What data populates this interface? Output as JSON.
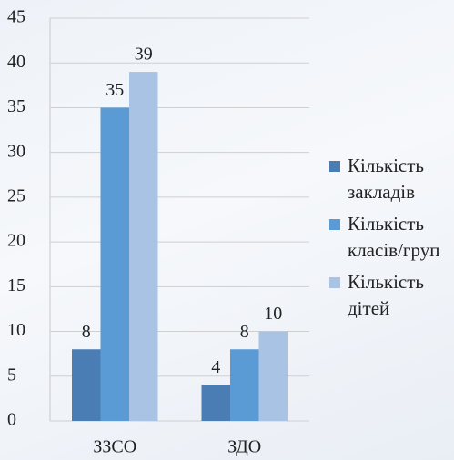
{
  "chart_data": {
    "type": "bar",
    "categories": [
      "ЗЗСО",
      "ЗДО"
    ],
    "series": [
      {
        "name": "Кількість закладів",
        "color": "#4a7db4",
        "values": [
          8,
          4
        ]
      },
      {
        "name": "Кількість класів/груп",
        "color": "#5b9bd5",
        "values": [
          35,
          8
        ]
      },
      {
        "name": "Кількість дітей",
        "color": "#a9c3e4",
        "values": [
          39,
          10
        ]
      }
    ],
    "ylim": [
      0,
      45
    ],
    "yticks": [
      0,
      5,
      10,
      15,
      20,
      25,
      30,
      35,
      40,
      45
    ],
    "grid": true,
    "legend": "right"
  }
}
